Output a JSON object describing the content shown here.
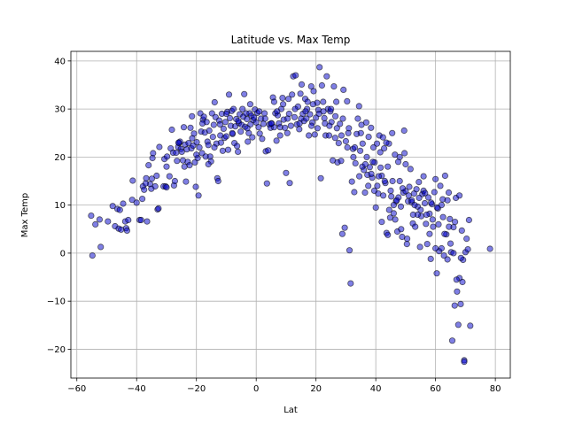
{
  "chart_data": {
    "type": "scatter",
    "title": "Latitude vs. Max Temp",
    "xlabel": "Lat",
    "ylabel": "Max Temp",
    "xlim": [
      -62,
      85
    ],
    "ylim": [
      -26,
      42
    ],
    "xticks": [
      -60,
      -40,
      -20,
      0,
      20,
      40,
      60,
      80
    ],
    "yticks": [
      -20,
      -10,
      0,
      10,
      20,
      30,
      40
    ],
    "xtick_labels": [
      "−60",
      "−40",
      "−20",
      "0",
      "20",
      "40",
      "60",
      "80"
    ],
    "ytick_labels": [
      "−20",
      "−10",
      "0",
      "10",
      "20",
      "30",
      "40"
    ],
    "grid": true,
    "marker_color": "#0000cc",
    "marker_edge_color": "#000000",
    "marker_alpha": 0.5,
    "points": [
      [
        -54.8,
        -0.5
      ],
      [
        -55.2,
        7.8
      ],
      [
        -53.8,
        6.0
      ],
      [
        -52.4,
        7.0
      ],
      [
        -52.0,
        1.3
      ],
      [
        -49.6,
        6.6
      ],
      [
        -48.0,
        9.8
      ],
      [
        -47.2,
        5.6
      ],
      [
        -46.4,
        9.2
      ],
      [
        -46.0,
        5.1
      ],
      [
        -45.6,
        9.0
      ],
      [
        -45.2,
        4.9
      ],
      [
        -44.5,
        10.3
      ],
      [
        -43.8,
        6.6
      ],
      [
        -43.5,
        5.2
      ],
      [
        -43.2,
        4.7
      ],
      [
        -42.8,
        6.9
      ],
      [
        -41.5,
        11.1
      ],
      [
        -41.3,
        15.1
      ],
      [
        -39.0,
        6.9
      ],
      [
        -38.5,
        6.9
      ],
      [
        -38.1,
        11.3
      ],
      [
        -37.9,
        13.9
      ],
      [
        -37.5,
        13.2
      ],
      [
        -36.8,
        15.6
      ],
      [
        -36.5,
        6.6
      ],
      [
        -36.0,
        18.3
      ],
      [
        -35.5,
        14.4
      ],
      [
        -35.1,
        13.4
      ],
      [
        -34.9,
        15.5
      ],
      [
        -34.7,
        19.8
      ],
      [
        -34.5,
        20.8
      ],
      [
        -33.8,
        13.9
      ],
      [
        -33.3,
        16.1
      ],
      [
        -33.0,
        9.1
      ],
      [
        -32.7,
        9.3
      ],
      [
        -32.4,
        22.1
      ],
      [
        -31.0,
        13.9
      ],
      [
        -30.7,
        19.6
      ],
      [
        -30.3,
        13.9
      ],
      [
        -30.0,
        13.7
      ],
      [
        -29.8,
        20.1
      ],
      [
        -29.0,
        16.0
      ],
      [
        -28.6,
        21.8
      ],
      [
        -28.2,
        25.7
      ],
      [
        -27.8,
        20.9
      ],
      [
        -27.5,
        14.1
      ],
      [
        -27.2,
        15.0
      ],
      [
        -26.8,
        20.9
      ],
      [
        -26.5,
        19.2
      ],
      [
        -26.1,
        22.1
      ],
      [
        -25.8,
        22.9
      ],
      [
        -25.5,
        23.2
      ],
      [
        -25.2,
        21.7
      ],
      [
        -24.9,
        21.1
      ],
      [
        -24.5,
        19.3
      ],
      [
        -24.2,
        26.2
      ],
      [
        -23.8,
        22.6
      ],
      [
        -23.5,
        14.9
      ],
      [
        -23.2,
        21.6
      ],
      [
        -22.9,
        19.0
      ],
      [
        -22.6,
        22.9
      ],
      [
        -22.3,
        18.3
      ],
      [
        -22.0,
        26.1
      ],
      [
        -21.7,
        21.8
      ],
      [
        -21.4,
        23.9
      ],
      [
        -21.1,
        22.4
      ],
      [
        -20.8,
        24.9
      ],
      [
        -20.5,
        18.9
      ],
      [
        -20.2,
        13.8
      ],
      [
        -19.9,
        23.1
      ],
      [
        -19.6,
        19.8
      ],
      [
        -19.3,
        12.0
      ],
      [
        -19.0,
        22.0
      ],
      [
        -18.7,
        29.1
      ],
      [
        -18.4,
        25.3
      ],
      [
        -18.1,
        20.8
      ],
      [
        -17.8,
        27.8
      ],
      [
        -17.5,
        28.4
      ],
      [
        -17.2,
        25.1
      ],
      [
        -16.9,
        20.1
      ],
      [
        -16.6,
        27.3
      ],
      [
        -16.3,
        23.2
      ],
      [
        -16.0,
        22.5
      ],
      [
        -15.7,
        25.5
      ],
      [
        -15.4,
        20.1
      ],
      [
        -15.1,
        19.1
      ],
      [
        -14.8,
        29.1
      ],
      [
        -14.5,
        24.2
      ],
      [
        -14.2,
        26.7
      ],
      [
        -13.9,
        31.4
      ],
      [
        -13.6,
        28.3
      ],
      [
        -13.3,
        22.8
      ],
      [
        -13.0,
        15.6
      ],
      [
        -12.7,
        15.0
      ],
      [
        -12.4,
        27.6
      ],
      [
        -12.1,
        26.8
      ],
      [
        -11.8,
        23.0
      ],
      [
        -11.5,
        29.0
      ],
      [
        -11.2,
        21.3
      ],
      [
        -10.9,
        25.9
      ],
      [
        -10.6,
        24.0
      ],
      [
        -10.3,
        27.3
      ],
      [
        -10.0,
        24.3
      ],
      [
        -9.7,
        29.4
      ],
      [
        -9.4,
        21.5
      ],
      [
        -9.1,
        33.0
      ],
      [
        -8.8,
        28.1
      ],
      [
        -8.5,
        26.5
      ],
      [
        -8.2,
        29.6
      ],
      [
        -7.9,
        24.8
      ],
      [
        -7.6,
        30.0
      ],
      [
        -7.3,
        22.9
      ],
      [
        -7.0,
        26.4
      ],
      [
        -6.7,
        27.9
      ],
      [
        -6.4,
        22.3
      ],
      [
        -6.1,
        21.1
      ],
      [
        -5.8,
        27.1
      ],
      [
        -5.5,
        28.9
      ],
      [
        -5.2,
        25.3
      ],
      [
        -4.9,
        26.7
      ],
      [
        -4.6,
        30.0
      ],
      [
        -4.3,
        28.4
      ],
      [
        -4.0,
        33.1
      ],
      [
        -3.7,
        26.3
      ],
      [
        -3.4,
        29.1
      ],
      [
        -3.1,
        27.9
      ],
      [
        -2.8,
        23.2
      ],
      [
        -2.5,
        25.0
      ],
      [
        -2.2,
        29.1
      ],
      [
        -1.9,
        26.8
      ],
      [
        -1.6,
        28.6
      ],
      [
        -1.3,
        24.1
      ],
      [
        -1.0,
        27.7
      ],
      [
        -0.7,
        28.2
      ],
      [
        -0.4,
        29.9
      ],
      [
        0.0,
        27.2
      ],
      [
        0.4,
        29.2
      ],
      [
        0.8,
        26.2
      ],
      [
        1.2,
        24.9
      ],
      [
        1.6,
        28.0
      ],
      [
        2.0,
        23.8
      ],
      [
        2.4,
        26.9
      ],
      [
        2.8,
        29.1
      ],
      [
        3.2,
        21.2
      ],
      [
        3.6,
        14.5
      ],
      [
        4.0,
        21.4
      ],
      [
        4.4,
        26.8
      ],
      [
        4.8,
        26.1
      ],
      [
        5.2,
        27.0
      ],
      [
        5.6,
        32.4
      ],
      [
        6.0,
        26.2
      ],
      [
        6.4,
        29.1
      ],
      [
        6.8,
        23.4
      ],
      [
        7.2,
        28.7
      ],
      [
        7.6,
        27.0
      ],
      [
        8.0,
        26.2
      ],
      [
        8.4,
        30.0
      ],
      [
        8.8,
        32.3
      ],
      [
        9.2,
        27.8
      ],
      [
        9.6,
        26.1
      ],
      [
        10.0,
        16.7
      ],
      [
        10.4,
        25.0
      ],
      [
        10.8,
        32.1
      ],
      [
        11.2,
        14.6
      ],
      [
        11.6,
        26.5
      ],
      [
        12.0,
        33.0
      ],
      [
        12.4,
        36.8
      ],
      [
        12.8,
        28.3
      ],
      [
        13.2,
        37.0
      ],
      [
        13.6,
        26.8
      ],
      [
        14.0,
        30.5
      ],
      [
        14.4,
        25.8
      ],
      [
        14.8,
        33.2
      ],
      [
        15.2,
        35.1
      ],
      [
        15.6,
        29.0
      ],
      [
        16.0,
        27.5
      ],
      [
        16.4,
        32.1
      ],
      [
        16.8,
        28.0
      ],
      [
        17.2,
        31.5
      ],
      [
        17.6,
        24.5
      ],
      [
        18.0,
        28.9
      ],
      [
        18.4,
        34.7
      ],
      [
        18.8,
        27.2
      ],
      [
        19.2,
        33.7
      ],
      [
        19.6,
        24.7
      ],
      [
        20.0,
        28.2
      ],
      [
        20.4,
        31.3
      ],
      [
        20.8,
        29.8
      ],
      [
        21.2,
        38.7
      ],
      [
        21.6,
        15.6
      ],
      [
        22.0,
        34.9
      ],
      [
        22.4,
        31.5
      ],
      [
        22.8,
        28.1
      ],
      [
        23.2,
        24.5
      ],
      [
        23.6,
        36.8
      ],
      [
        24.0,
        30.0
      ],
      [
        24.4,
        24.5
      ],
      [
        24.8,
        29.5
      ],
      [
        25.2,
        27.3
      ],
      [
        25.6,
        19.3
      ],
      [
        26.0,
        34.7
      ],
      [
        26.4,
        24.0
      ],
      [
        26.8,
        31.5
      ],
      [
        27.2,
        18.9
      ],
      [
        27.6,
        22.9
      ],
      [
        28.0,
        26.9
      ],
      [
        28.4,
        19.2
      ],
      [
        28.8,
        4.0
      ],
      [
        29.2,
        34.0
      ],
      [
        29.6,
        5.3
      ],
      [
        30.0,
        23.3
      ],
      [
        30.4,
        31.6
      ],
      [
        30.8,
        25.0
      ],
      [
        31.2,
        0.6
      ],
      [
        31.6,
        -6.3
      ],
      [
        32.0,
        14.9
      ],
      [
        32.4,
        21.7
      ],
      [
        32.8,
        12.7
      ],
      [
        33.2,
        18.7
      ],
      [
        33.6,
        24.8
      ],
      [
        34.0,
        28.0
      ],
      [
        34.4,
        30.6
      ],
      [
        34.8,
        21.3
      ],
      [
        35.2,
        26.7
      ],
      [
        35.6,
        22.8
      ],
      [
        36.0,
        17.3
      ],
      [
        36.4,
        12.6
      ],
      [
        36.8,
        27.2
      ],
      [
        37.2,
        16.3
      ],
      [
        37.6,
        24.2
      ],
      [
        38.0,
        17.9
      ],
      [
        38.4,
        26.1
      ],
      [
        38.8,
        15.7
      ],
      [
        39.2,
        22.0
      ],
      [
        39.6,
        18.9
      ],
      [
        40.0,
        9.5
      ],
      [
        40.4,
        22.8
      ],
      [
        40.8,
        12.4
      ],
      [
        41.2,
        24.5
      ],
      [
        41.6,
        17.8
      ],
      [
        42.0,
        16.1
      ],
      [
        42.4,
        24.1
      ],
      [
        42.8,
        21.8
      ],
      [
        43.2,
        14.6
      ],
      [
        43.6,
        4.2
      ],
      [
        44.0,
        18.0
      ],
      [
        44.4,
        22.8
      ],
      [
        44.8,
        7.4
      ],
      [
        45.2,
        11.8
      ],
      [
        45.6,
        15.0
      ],
      [
        46.0,
        8.3
      ],
      [
        46.4,
        20.5
      ],
      [
        46.8,
        10.8
      ],
      [
        47.2,
        4.5
      ],
      [
        47.6,
        11.6
      ],
      [
        48.0,
        20.0
      ],
      [
        48.4,
        9.7
      ],
      [
        48.8,
        3.4
      ],
      [
        49.2,
        12.6
      ],
      [
        49.6,
        20.8
      ],
      [
        50.0,
        12.9
      ],
      [
        50.4,
        1.9
      ],
      [
        50.8,
        10.8
      ],
      [
        51.2,
        13.8
      ],
      [
        51.6,
        17.5
      ],
      [
        52.0,
        10.6
      ],
      [
        52.4,
        6.2
      ],
      [
        52.8,
        12.4
      ],
      [
        53.2,
        5.5
      ],
      [
        53.6,
        13.3
      ],
      [
        54.0,
        9.7
      ],
      [
        54.4,
        14.8
      ],
      [
        54.8,
        1.3
      ],
      [
        55.2,
        7.7
      ],
      [
        55.6,
        12.3
      ],
      [
        56.0,
        16.0
      ],
      [
        56.4,
        10.4
      ],
      [
        56.8,
        6.1
      ],
      [
        57.2,
        1.9
      ],
      [
        57.6,
        11.6
      ],
      [
        58.0,
        8.2
      ],
      [
        58.4,
        -1.2
      ],
      [
        58.8,
        10.2
      ],
      [
        59.2,
        5.5
      ],
      [
        59.6,
        12.7
      ],
      [
        60.0,
        15.4
      ],
      [
        60.4,
        -4.2
      ],
      [
        60.8,
        9.3
      ],
      [
        61.2,
        0.4
      ],
      [
        61.6,
        14.0
      ],
      [
        62.0,
        1.0
      ],
      [
        62.4,
        11.2
      ],
      [
        62.8,
        -0.5
      ],
      [
        63.2,
        16.1
      ],
      [
        63.6,
        3.9
      ],
      [
        64.0,
        -1.3
      ],
      [
        64.4,
        12.6
      ],
      [
        64.8,
        7.1
      ],
      [
        65.2,
        0.2
      ],
      [
        65.6,
        -18.2
      ],
      [
        66.0,
        5.4
      ],
      [
        66.4,
        -10.9
      ],
      [
        66.8,
        11.5
      ],
      [
        67.2,
        -8.0
      ],
      [
        67.6,
        -14.9
      ],
      [
        68.0,
        -5.2
      ],
      [
        68.4,
        -10.6
      ],
      [
        68.8,
        4.7
      ],
      [
        69.2,
        -1.4
      ],
      [
        69.6,
        -22.3
      ],
      [
        70.0,
        0.2
      ],
      [
        70.4,
        3.0
      ],
      [
        70.8,
        0.8
      ],
      [
        71.2,
        6.9
      ],
      [
        71.6,
        -15.1
      ],
      [
        78.2,
        0.9
      ],
      [
        -21.5,
        28.5
      ],
      [
        -18.0,
        27.0
      ],
      [
        -10.0,
        29.0
      ],
      [
        -2.0,
        31.0
      ],
      [
        3.0,
        28.0
      ],
      [
        5.0,
        27.0
      ],
      [
        7.0,
        29.5
      ],
      [
        9.0,
        31.0
      ],
      [
        11.0,
        29.0
      ],
      [
        13.0,
        30.0
      ],
      [
        15.0,
        28.0
      ],
      [
        17.0,
        30.0
      ],
      [
        19.0,
        31.0
      ],
      [
        21.0,
        29.0
      ],
      [
        23.0,
        27.0
      ],
      [
        25.0,
        30.0
      ],
      [
        27.0,
        26.0
      ],
      [
        29.0,
        28.0
      ],
      [
        31.0,
        26.0
      ],
      [
        33.0,
        22.0
      ],
      [
        35.0,
        25.0
      ],
      [
        37.0,
        20.0
      ],
      [
        39.0,
        19.0
      ],
      [
        41.0,
        16.0
      ],
      [
        43.0,
        15.0
      ],
      [
        45.0,
        13.0
      ],
      [
        47.0,
        11.0
      ],
      [
        49.0,
        13.5
      ],
      [
        51.0,
        12.0
      ],
      [
        53.0,
        10.0
      ],
      [
        55.0,
        9.0
      ],
      [
        57.0,
        8.0
      ],
      [
        59.0,
        7.0
      ],
      [
        61.0,
        6.0
      ],
      [
        63.0,
        4.0
      ],
      [
        65.0,
        2.0
      ],
      [
        67.0,
        -5.5
      ],
      [
        69.0,
        -6.0
      ],
      [
        69.6,
        -22.6
      ],
      [
        42.0,
        6.5
      ],
      [
        44.0,
        3.8
      ],
      [
        46.0,
        10.0
      ],
      [
        48.0,
        15.0
      ],
      [
        50.0,
        18.5
      ],
      [
        52.0,
        11.0
      ],
      [
        54.0,
        8.0
      ],
      [
        56.0,
        13.0
      ],
      [
        58.0,
        4.0
      ],
      [
        60.0,
        1.0
      ],
      [
        62.0,
        10.0
      ],
      [
        64.0,
        11.0
      ],
      [
        66.0,
        0.0
      ],
      [
        68.0,
        12.0
      ],
      [
        35.5,
        18.0
      ],
      [
        37.5,
        14.0
      ],
      [
        39.5,
        13.0
      ],
      [
        41.5,
        21.0
      ],
      [
        43.5,
        23.0
      ],
      [
        45.5,
        25.0
      ],
      [
        47.5,
        19.0
      ],
      [
        49.5,
        25.5
      ],
      [
        -40.0,
        10.5
      ],
      [
        -37.0,
        14.5
      ],
      [
        -30.0,
        18.0
      ],
      [
        -26.0,
        23.0
      ],
      [
        -24.0,
        18.0
      ],
      [
        -20.0,
        20.5
      ],
      [
        -16.0,
        18.5
      ],
      [
        -14.0,
        22.0
      ],
      [
        -12.0,
        24.5
      ],
      [
        -8.0,
        25.0
      ],
      [
        -6.0,
        27.5
      ],
      [
        -3.0,
        26.0
      ],
      [
        1.0,
        29.5
      ],
      [
        6.0,
        31.5
      ],
      [
        8.0,
        24.5
      ],
      [
        10.5,
        28.0
      ],
      [
        14.5,
        27.0
      ],
      [
        16.5,
        29.5
      ],
      [
        18.5,
        26.5
      ],
      [
        20.5,
        26.0
      ],
      [
        22.5,
        29.5
      ],
      [
        24.5,
        26.5
      ],
      [
        26.5,
        28.5
      ],
      [
        28.5,
        24.5
      ],
      [
        30.5,
        22.0
      ],
      [
        32.5,
        20.0
      ],
      [
        34.5,
        16.0
      ],
      [
        36.5,
        18.5
      ],
      [
        38.5,
        16.5
      ],
      [
        40.5,
        14.0
      ],
      [
        42.5,
        12.0
      ],
      [
        44.5,
        9.0
      ],
      [
        46.5,
        7.0
      ],
      [
        48.5,
        5.0
      ],
      [
        50.5,
        3.0
      ],
      [
        52.5,
        8.0
      ],
      [
        54.5,
        11.5
      ],
      [
        56.5,
        12.5
      ],
      [
        58.5,
        10.5
      ],
      [
        60.5,
        9.5
      ],
      [
        62.5,
        7.5
      ],
      [
        64.5,
        5.5
      ],
      [
        66.5,
        6.5
      ],
      [
        68.5,
        -1.0
      ]
    ]
  }
}
